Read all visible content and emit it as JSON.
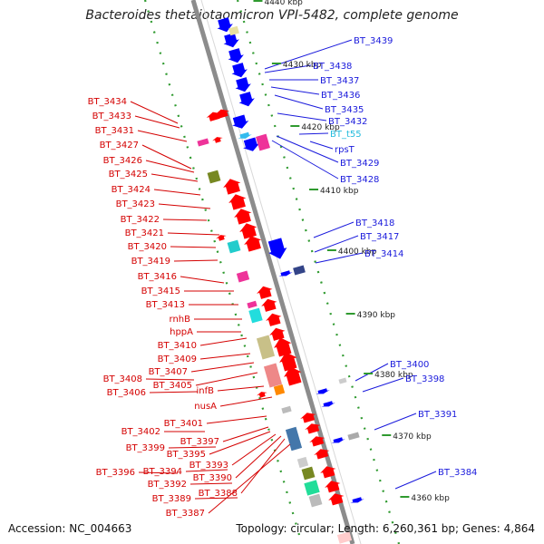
{
  "title": "Bacteroides thetaiotaomicron VPI-5482, complete genome",
  "footer": {
    "accession": "Accession: NC_004663",
    "summary": "Topology: circular; Length: 6,260,361 bp; Genes: 4,864"
  },
  "colors": {
    "left_label": "#d40000",
    "right_label": "#1a1adc",
    "trna_label": "#22bbdd",
    "backbone": "#8c8c8c",
    "ruler_dots": "#2f9a2f",
    "forward_gene": "#ff0000",
    "reverse_gene": "#0000ff"
  },
  "ruler": [
    "4440 kbp",
    "4430 kbp",
    "4420 kbp",
    "4410 kbp",
    "4400 kbp",
    "4390 kbp",
    "4380 kbp",
    "4370 kbp",
    "4360 kbp"
  ],
  "left_labels": [
    "BT_3434",
    "BT_3433",
    "BT_3431",
    "BT_3427",
    "BT_3426",
    "BT_3425",
    "BT_3424",
    "BT_3423",
    "BT_3422",
    "BT_3421",
    "BT_3420",
    "BT_3419",
    "BT_3416",
    "BT_3415",
    "BT_3413",
    "rnhB",
    "hppA",
    "BT_3410",
    "BT_3409",
    "BT_3407",
    "BT_3408",
    "BT_3405",
    "BT_3406",
    "infB",
    "nusA",
    "BT_3401",
    "BT_3402",
    "BT_3397",
    "BT_3399",
    "BT_3395",
    "BT_3393",
    "BT_3394",
    "BT_3396",
    "BT_3390",
    "BT_3392",
    "BT_3388",
    "BT_3389",
    "BT_3387"
  ],
  "right_labels": [
    "BT_3439",
    "BT_3438",
    "BT_3437",
    "BT_3436",
    "BT_3435",
    "BT_3432",
    "BT_t55",
    "rpsT",
    "BT_3429",
    "BT_3428",
    "BT_3418",
    "BT_3417",
    "BT_3414",
    "BT_3400",
    "BT_3398",
    "BT_3391",
    "BT_3384"
  ]
}
